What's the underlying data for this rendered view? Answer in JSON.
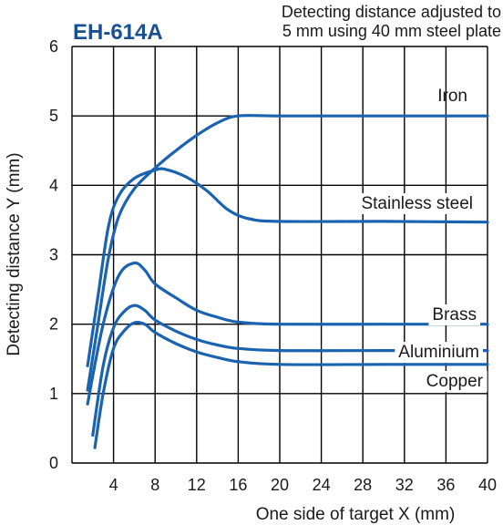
{
  "chart_data": {
    "type": "line",
    "title": "EH-614A",
    "subtitle_lines": [
      "Detecting distance adjusted to",
      "5 mm using 40 mm steel plate"
    ],
    "xlabel": "One side of target X (mm)",
    "ylabel": "Detecting distance Y (mm)",
    "xlim": [
      0,
      40
    ],
    "ylim": [
      0,
      6
    ],
    "xticks": [
      4,
      8,
      12,
      16,
      20,
      24,
      28,
      32,
      36,
      40
    ],
    "yticks": [
      0,
      1,
      2,
      3,
      4,
      5,
      6
    ],
    "x_tick_labels": [
      "4",
      "8",
      "12",
      "16",
      "20",
      "24",
      "28",
      "32",
      "36",
      "40"
    ],
    "y_tick_labels": [
      "0",
      "1",
      "2",
      "3",
      "4",
      "5",
      "6"
    ],
    "grid": true,
    "series": [
      {
        "name": "Iron",
        "x": [
          1.5,
          2.5,
          3.5,
          4.5,
          6,
          8,
          10,
          12,
          14,
          16,
          20,
          30,
          40
        ],
        "y": [
          1.05,
          2.0,
          2.95,
          3.55,
          3.95,
          4.25,
          4.5,
          4.72,
          4.9,
          5.0,
          5.0,
          5.0,
          5.0
        ]
      },
      {
        "name": "Stainless steel",
        "x": [
          1.5,
          2.5,
          3.5,
          4.5,
          6,
          8,
          9,
          11,
          13,
          15,
          17,
          20,
          30,
          40
        ],
        "y": [
          1.4,
          2.4,
          3.4,
          3.85,
          4.1,
          4.22,
          4.23,
          4.12,
          3.92,
          3.65,
          3.52,
          3.48,
          3.48,
          3.47
        ]
      },
      {
        "name": "Brass",
        "x": [
          1.5,
          3,
          4.5,
          6,
          7,
          8,
          10,
          12,
          14,
          16,
          20,
          30,
          40
        ],
        "y": [
          0.85,
          2.0,
          2.7,
          2.88,
          2.78,
          2.58,
          2.38,
          2.2,
          2.1,
          2.03,
          2.0,
          2.0,
          2.0
        ]
      },
      {
        "name": "Aluminium",
        "x": [
          2,
          3,
          4,
          5,
          6,
          7,
          8,
          10,
          12,
          14,
          16,
          20,
          30,
          40
        ],
        "y": [
          0.4,
          1.4,
          1.95,
          2.18,
          2.27,
          2.2,
          2.06,
          1.9,
          1.78,
          1.7,
          1.65,
          1.62,
          1.62,
          1.62
        ]
      },
      {
        "name": "Copper",
        "x": [
          2.2,
          3,
          4,
          5,
          6,
          7,
          8,
          10,
          12,
          14,
          16,
          20,
          30,
          40
        ],
        "y": [
          0.22,
          1.0,
          1.65,
          1.9,
          2.02,
          2.0,
          1.88,
          1.72,
          1.6,
          1.52,
          1.46,
          1.42,
          1.42,
          1.42
        ]
      }
    ],
    "colors": {
      "line": "#1a63b0",
      "title": "#1a4f94",
      "grid": "#000000",
      "text": "#1a1a1a"
    }
  }
}
